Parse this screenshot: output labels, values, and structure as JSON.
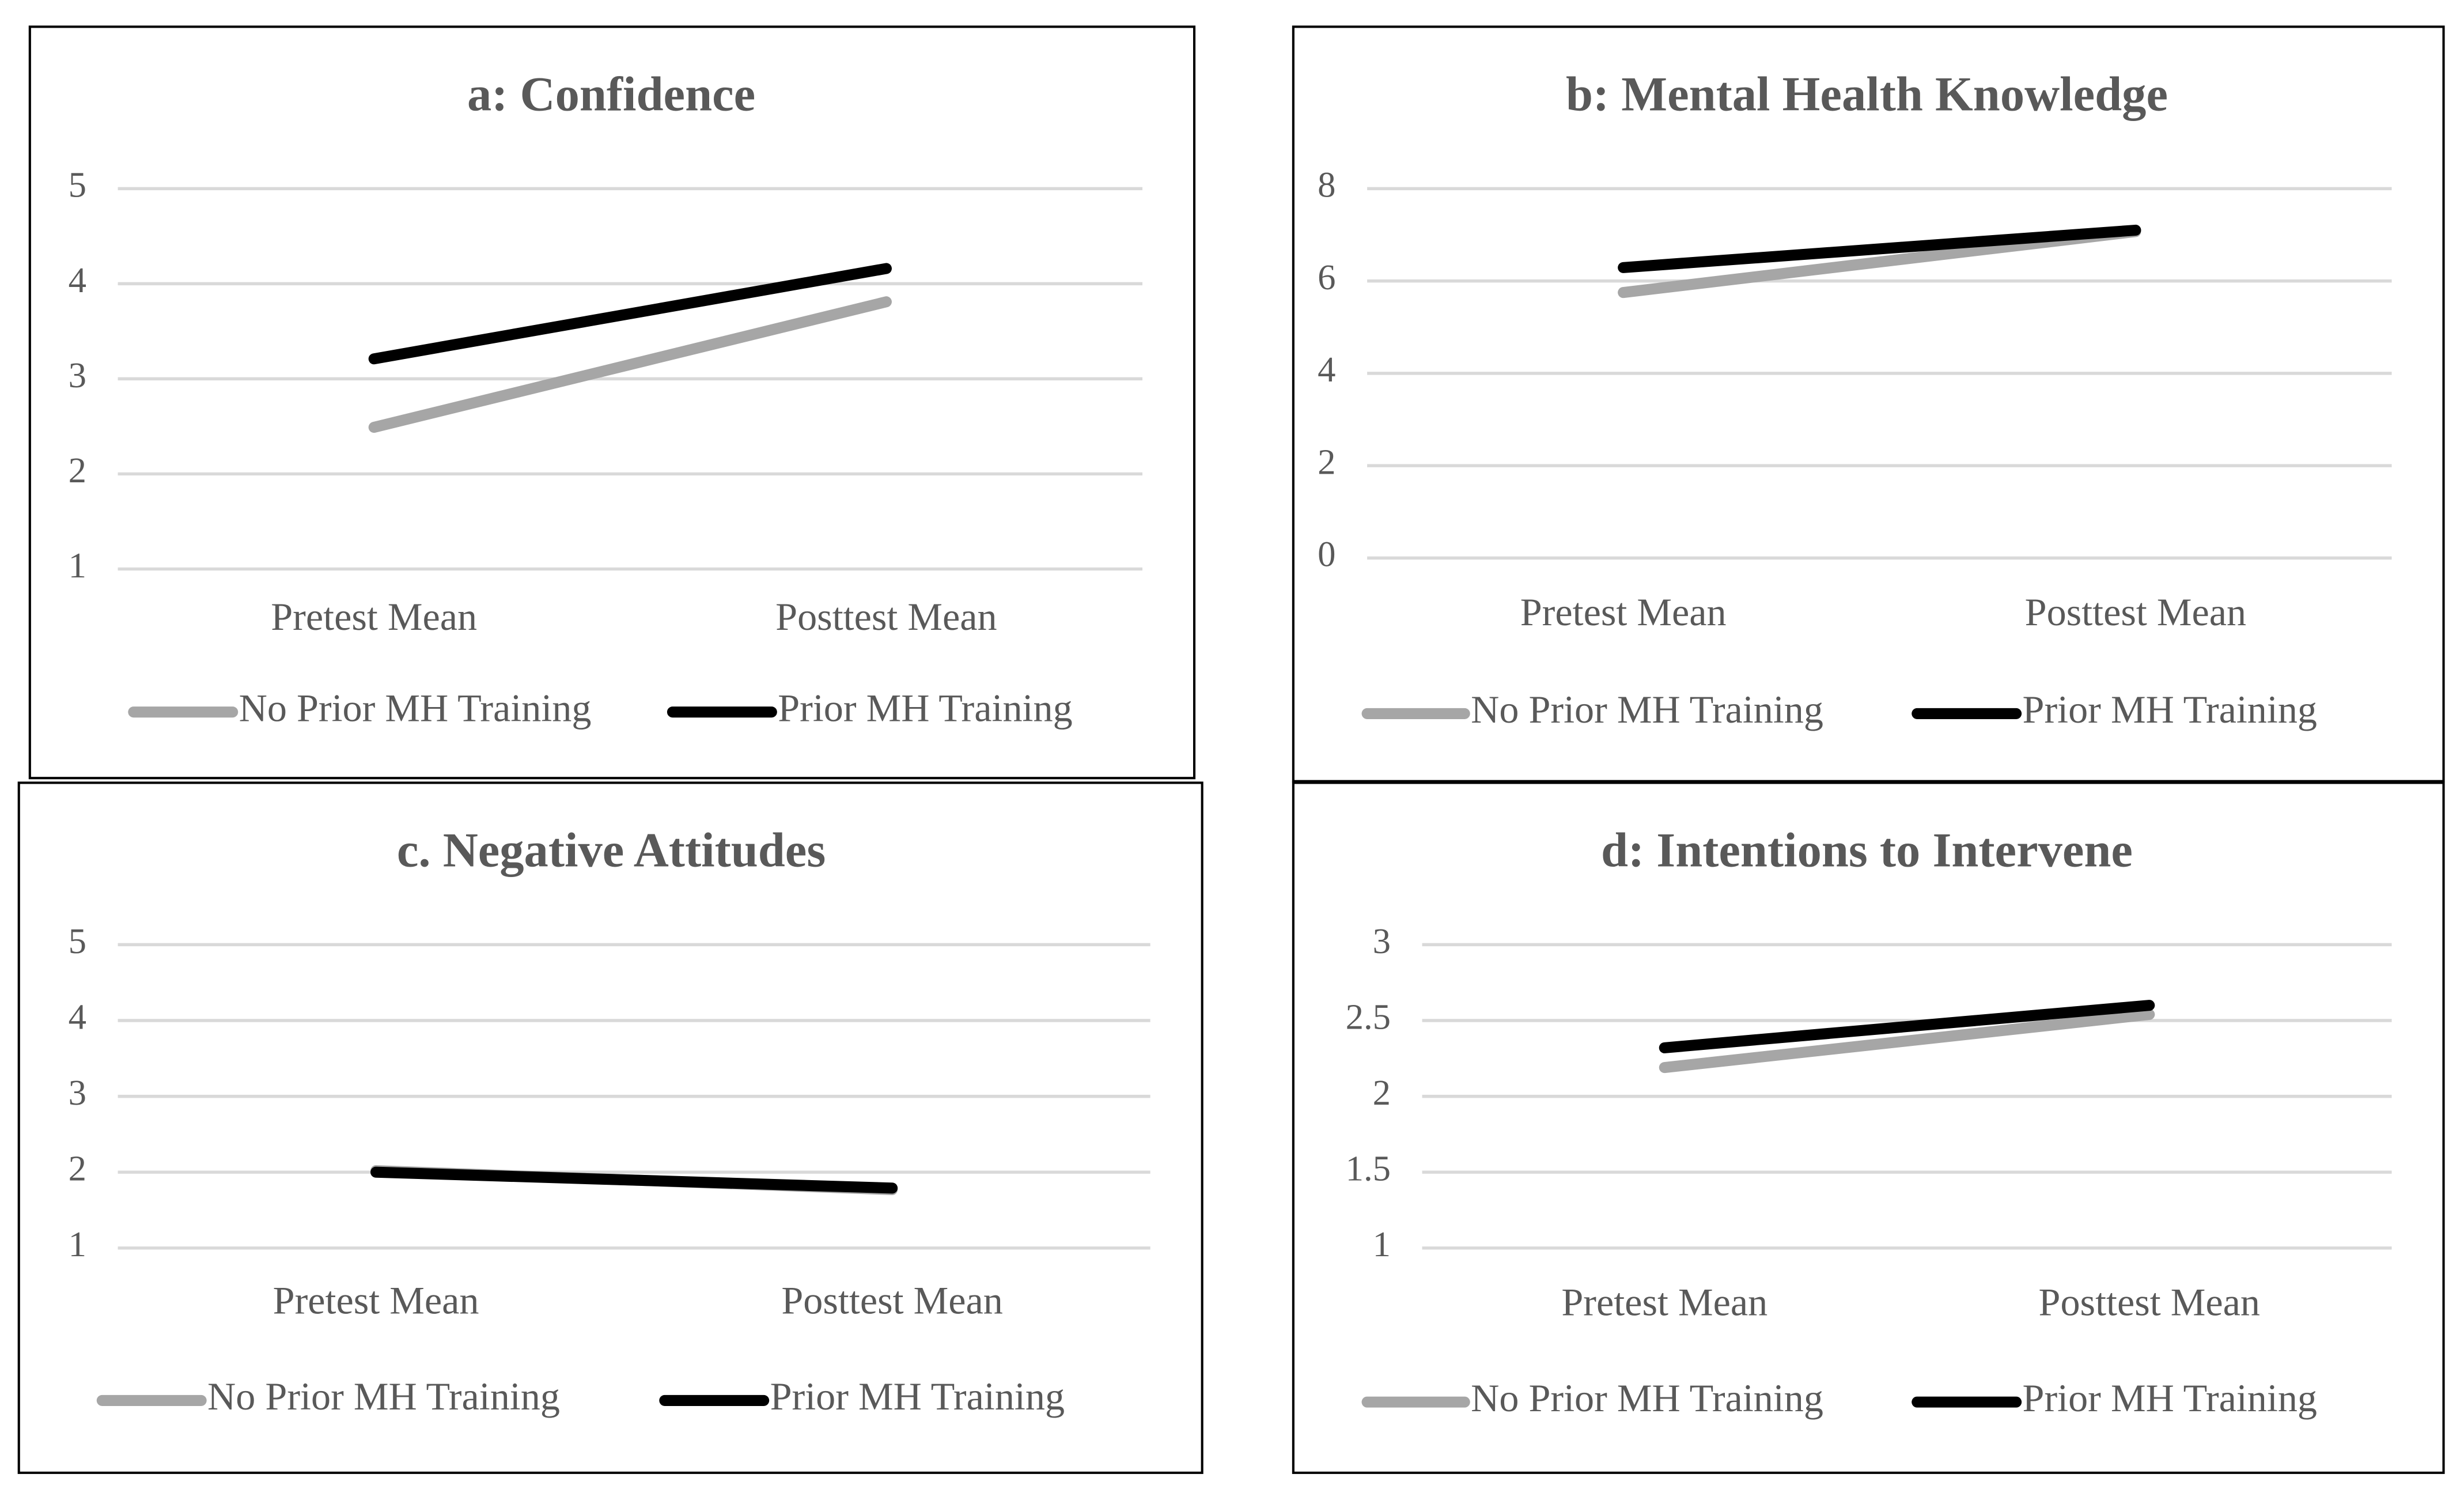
{
  "chart_data": [
    {
      "type": "line",
      "title": "a: Confidence",
      "categories": [
        "Pretest Mean",
        "Posttest Mean"
      ],
      "series": [
        {
          "name": "No Prior MH Training",
          "color": "#a6a6a6",
          "values": [
            2.49,
            3.81
          ]
        },
        {
          "name": "Prior MH Training",
          "color": "#000000",
          "values": [
            3.21,
            4.16
          ]
        }
      ],
      "ylim": [
        1,
        5
      ],
      "yticks": [
        1,
        2,
        3,
        4,
        5
      ],
      "grid": true,
      "legend": "bottom"
    },
    {
      "type": "line",
      "title": "b: Mental Health Knowledge",
      "categories": [
        "Pretest Mean",
        "Posttest Mean"
      ],
      "series": [
        {
          "name": "No Prior MH Training",
          "color": "#a6a6a6",
          "values": [
            5.75,
            7.07
          ]
        },
        {
          "name": "Prior MH Training",
          "color": "#000000",
          "values": [
            6.29,
            7.1
          ]
        }
      ],
      "ylim": [
        0,
        8
      ],
      "yticks": [
        0,
        2,
        4,
        6,
        8
      ],
      "grid": true,
      "legend": "bottom"
    },
    {
      "type": "line",
      "title": "c. Negative Attitudes",
      "categories": [
        "Pretest Mean",
        "Posttest Mean"
      ],
      "series": [
        {
          "name": "No Prior MH Training",
          "color": "#a6a6a6",
          "values": [
            2.02,
            1.77
          ]
        },
        {
          "name": "Prior MH Training",
          "color": "#000000",
          "values": [
            2.0,
            1.79
          ]
        }
      ],
      "ylim": [
        1,
        5
      ],
      "yticks": [
        1,
        2,
        3,
        4,
        5
      ],
      "grid": true,
      "legend": "bottom"
    },
    {
      "type": "line",
      "title": "d: Intentions to Intervene",
      "categories": [
        "Pretest Mean",
        "Posttest Mean"
      ],
      "series": [
        {
          "name": "No Prior MH Training",
          "color": "#a6a6a6",
          "values": [
            2.19,
            2.54
          ]
        },
        {
          "name": "Prior MH Training",
          "color": "#000000",
          "values": [
            2.32,
            2.6
          ]
        }
      ],
      "ylim": [
        1,
        3
      ],
      "yticks": [
        1,
        1.5,
        2,
        2.5,
        3
      ],
      "grid": true,
      "legend": "bottom"
    }
  ]
}
